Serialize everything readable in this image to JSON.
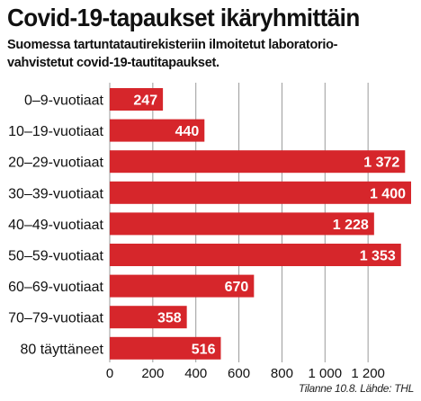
{
  "title": "Covid-19-tapaukset ikäryhmittäin",
  "subtitle_lines": [
    "Suomessa tartuntatautirekisteriin ilmoitetut laboratorio-",
    "vahvistetut covid-19-tautitapaukset."
  ],
  "source": "Tilanne 10.8. Lähde: THL",
  "colors": {
    "bar": "#d6262b",
    "bar_label": "#ffffff",
    "grid": "#9a9a9a",
    "text": "#111111"
  },
  "chart_data": {
    "type": "bar",
    "orientation": "horizontal",
    "title": "Covid-19-tapaukset ikäryhmittäin",
    "subtitle": "Suomessa tartuntatautirekisteriin ilmoitetut laboratoriovahvistetut covid-19-tautitapaukset.",
    "categories": [
      "0–9-vuotiaat",
      "10–19-vuotiaat",
      "20–29-vuotiaat",
      "30–39-vuotiaat",
      "40–49-vuotiaat",
      "50–59-vuotiaat",
      "60–69-vuotiaat",
      "70–79-vuotiaat",
      "80 täyttäneet"
    ],
    "values": [
      247,
      440,
      1372,
      1400,
      1228,
      1353,
      670,
      358,
      516
    ],
    "value_labels": [
      "247",
      "440",
      "1 372",
      "1 400",
      "1 228",
      "1 353",
      "670",
      "358",
      "516"
    ],
    "xlim": [
      0,
      1400
    ],
    "xticks": [
      0,
      200,
      400,
      600,
      800,
      1000,
      1200
    ],
    "xtick_labels": [
      "0",
      "200",
      "400",
      "600",
      "800",
      "1 000",
      "1 200"
    ],
    "grid": "vertical",
    "legend": "none"
  }
}
